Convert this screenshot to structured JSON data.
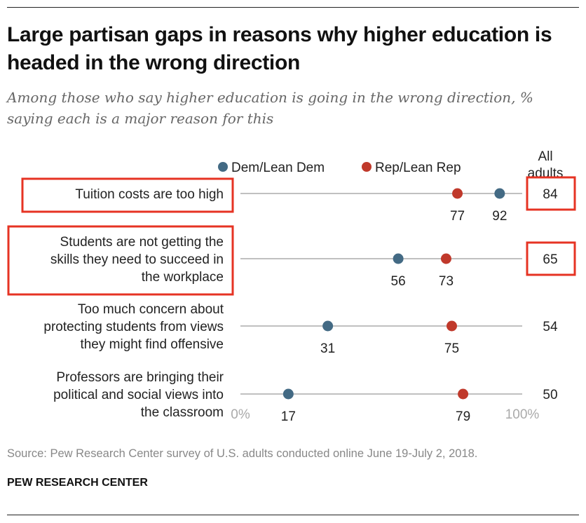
{
  "title": "Large partisan gaps in reasons why higher education is headed in the wrong direction",
  "subtitle": "Among those who say higher education is going in the wrong direction, % saying each is a major reason for this",
  "source": "Source: Pew Research Center survey of U.S. adults conducted online June 19-July 2, 2018.",
  "brand": "PEW RESEARCH CENTER",
  "legend": {
    "dem": "Dem/Lean Dem",
    "rep": "Rep/Lean Rep"
  },
  "all_adults_header": [
    "All",
    "adults"
  ],
  "colors": {
    "dem": "#436a84",
    "rep": "#c0392b",
    "highlight": "#e63323",
    "line": "#9a9a9a"
  },
  "chart_data": {
    "type": "dot",
    "xlim": [
      0,
      100
    ],
    "x_tick_labels": [
      "0%",
      "100%"
    ],
    "categories": [
      {
        "label": [
          "Tuition costs are too high"
        ],
        "dem": 92,
        "rep": 77,
        "all": 84,
        "highlighted": true
      },
      {
        "label": [
          "Students are not getting the",
          "skills they need to succeed in",
          "the workplace"
        ],
        "dem": 56,
        "rep": 73,
        "all": 65,
        "highlighted": true
      },
      {
        "label": [
          "Too much concern about",
          "protecting students from views",
          "they might find offensive"
        ],
        "dem": 31,
        "rep": 75,
        "all": 54,
        "highlighted": false
      },
      {
        "label": [
          "Professors are bringing their",
          "political and social views into",
          "the classroom"
        ],
        "dem": 17,
        "rep": 79,
        "all": 50,
        "highlighted": false
      }
    ]
  }
}
